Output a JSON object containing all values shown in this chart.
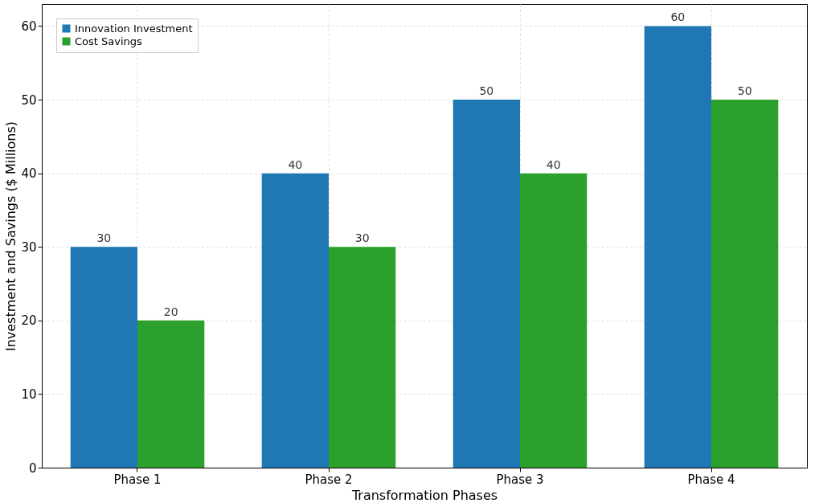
{
  "chart_data": {
    "type": "bar",
    "xlabel": "Transformation Phases",
    "ylabel": "Investment and Savings ($ Millions)",
    "categories": [
      "Phase 1",
      "Phase 2",
      "Phase 3",
      "Phase 4"
    ],
    "series": [
      {
        "name": "Innovation Investment",
        "color": "#1f77b4",
        "values": [
          30,
          40,
          50,
          60
        ]
      },
      {
        "name": "Cost Savings",
        "color": "#2ca02c",
        "values": [
          20,
          30,
          40,
          50
        ]
      }
    ],
    "ylim": [
      0,
      63
    ],
    "yticks": [
      0,
      10,
      20,
      30,
      40,
      50,
      60
    ],
    "grid": true,
    "legend": "top left",
    "data_labels": true
  }
}
